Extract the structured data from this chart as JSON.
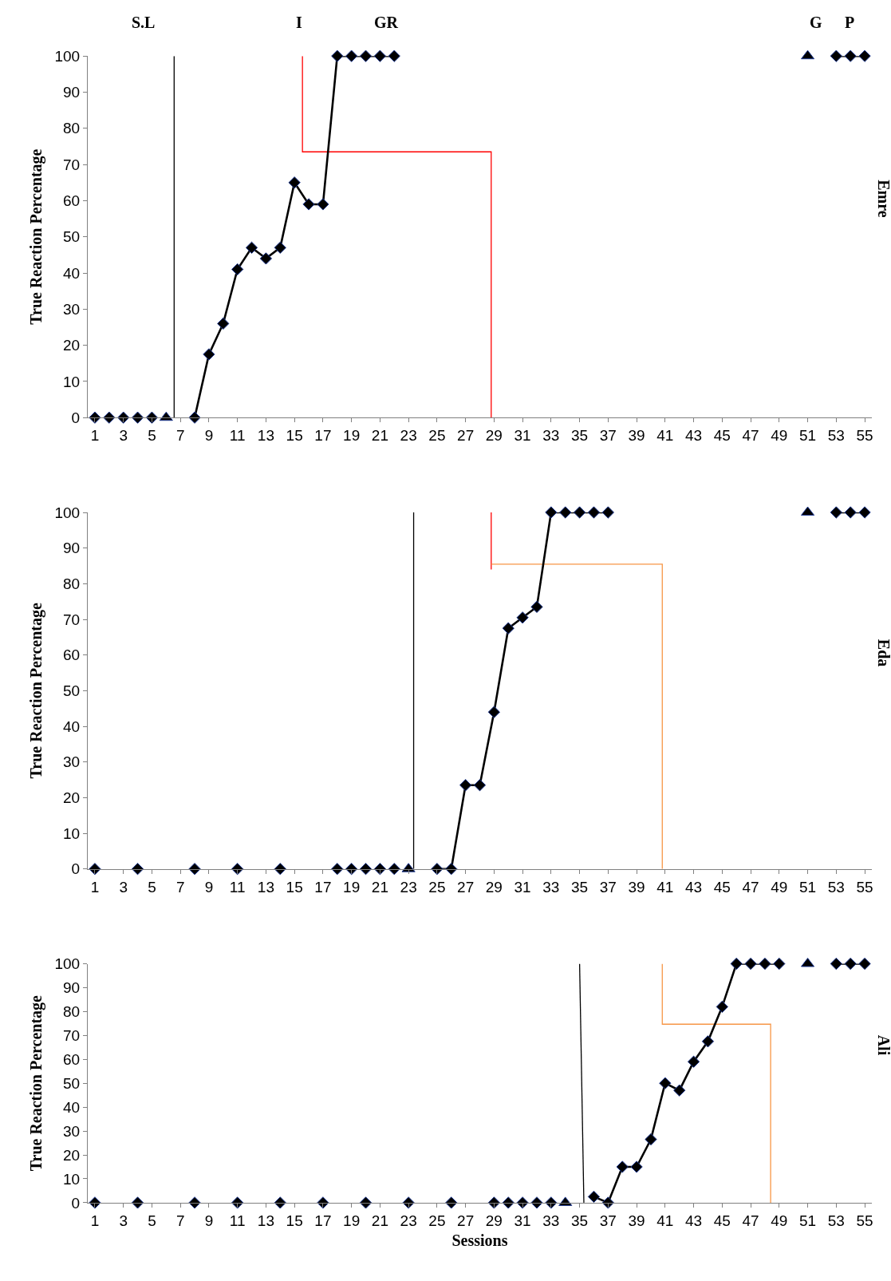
{
  "chart_data": [
    {
      "type": "line",
      "ylabel": "True Reaction Percentage",
      "y2label": "Emre",
      "xlim": [
        0.5,
        55.5
      ],
      "xticks": [
        1,
        3,
        5,
        7,
        9,
        11,
        13,
        15,
        17,
        19,
        21,
        23,
        25,
        27,
        29,
        31,
        33,
        35,
        37,
        39,
        41,
        43,
        45,
        47,
        49,
        51,
        53,
        55
      ],
      "ylim": [
        0,
        100
      ],
      "yticks": [
        0,
        10,
        20,
        30,
        40,
        50,
        60,
        70,
        80,
        90,
        100
      ],
      "marker": "diamond",
      "annotations": [
        "S.L",
        "I",
        "GR",
        "G",
        "P"
      ],
      "series": [
        {
          "marker": "none",
          "color": "#000000",
          "x": [
            6.56,
            6.56
          ],
          "values": [
            100,
            0
          ]
        },
        {
          "marker": "none",
          "color": "#ff0000",
          "x": [
            15.56,
            15.56,
            28.8,
            28.8
          ],
          "values": [
            100,
            73.5,
            73.5,
            0
          ]
        },
        {
          "type": "scatter",
          "color": "#000000",
          "x": [
            1,
            2,
            3,
            4,
            5
          ],
          "values": [
            0,
            0,
            0,
            0,
            0
          ]
        },
        {
          "type": "scatter",
          "marker": "triangle",
          "color": "#000000",
          "x": [
            6,
            51
          ],
          "values": [
            0,
            100
          ]
        },
        {
          "color": "#000000",
          "x": [
            8,
            9,
            10,
            11,
            12,
            13,
            14,
            15,
            16,
            17,
            18,
            19,
            20,
            21,
            22
          ],
          "values": [
            0,
            17.5,
            26,
            41,
            47,
            44,
            47,
            65,
            59,
            59,
            100,
            100,
            100,
            100,
            100
          ]
        },
        {
          "color": "#000000",
          "x": [
            53,
            54,
            55
          ],
          "values": [
            100,
            100,
            100
          ]
        }
      ]
    },
    {
      "type": "line",
      "ylabel": "True Reaction Percentage",
      "y2label": "Eda",
      "xlim": [
        0.5,
        55.5
      ],
      "xticks": [
        1,
        3,
        5,
        7,
        9,
        11,
        13,
        15,
        17,
        19,
        21,
        23,
        25,
        27,
        29,
        31,
        33,
        35,
        37,
        39,
        41,
        43,
        45,
        47,
        49,
        51,
        53,
        55
      ],
      "ylim": [
        0,
        100
      ],
      "yticks": [
        0,
        10,
        20,
        30,
        40,
        50,
        60,
        70,
        80,
        90,
        100
      ],
      "marker": "diamond",
      "series": [
        {
          "marker": "none",
          "color": "#000000",
          "x": [
            23.36,
            23.36
          ],
          "values": [
            100,
            0
          ]
        },
        {
          "marker": "none",
          "color": "#ff0000",
          "x": [
            28.8,
            28.8
          ],
          "values": [
            100,
            84
          ]
        },
        {
          "marker": "none",
          "color": "#f79646",
          "x": [
            28.8,
            40.8,
            40.8
          ],
          "values": [
            85.5,
            85.5,
            0
          ]
        },
        {
          "type": "scatter",
          "color": "#000000",
          "x": [
            1,
            4,
            8,
            11,
            14,
            18,
            19,
            20,
            21,
            22
          ],
          "values": [
            0,
            0,
            0,
            0,
            0,
            0,
            0,
            0,
            0,
            0
          ]
        },
        {
          "type": "scatter",
          "marker": "triangle",
          "color": "#000000",
          "x": [
            23,
            51
          ],
          "values": [
            0,
            100
          ]
        },
        {
          "color": "#000000",
          "x": [
            25,
            26,
            27,
            28,
            29,
            30,
            31,
            32,
            33,
            34,
            35,
            36,
            37
          ],
          "values": [
            0,
            0,
            23.5,
            23.5,
            44,
            67.5,
            70.5,
            73.5,
            100,
            100,
            100,
            100,
            100
          ]
        },
        {
          "color": "#000000",
          "x": [
            53,
            54,
            55
          ],
          "values": [
            100,
            100,
            100
          ]
        }
      ]
    },
    {
      "type": "line",
      "ylabel": "True Reaction Percentage",
      "y2label": "Ali",
      "xlabel": "Sessions",
      "xlim": [
        0.5,
        55.5
      ],
      "xticks": [
        1,
        3,
        5,
        7,
        9,
        11,
        13,
        15,
        17,
        19,
        21,
        23,
        25,
        27,
        29,
        31,
        33,
        35,
        37,
        39,
        41,
        43,
        45,
        47,
        49,
        51,
        53,
        55
      ],
      "ylim": [
        0,
        100
      ],
      "yticks": [
        0,
        10,
        20,
        30,
        40,
        50,
        60,
        70,
        80,
        90,
        100
      ],
      "marker": "diamond",
      "series": [
        {
          "marker": "none",
          "color": "#000000",
          "x": [
            35.0,
            35.3
          ],
          "values": [
            100,
            0
          ]
        },
        {
          "marker": "none",
          "color": "#f79646",
          "x": [
            40.8,
            40.8,
            48.4,
            48.4
          ],
          "values": [
            100,
            74.7,
            74.7,
            0
          ]
        },
        {
          "type": "scatter",
          "color": "#000000",
          "x": [
            1,
            4,
            8,
            11,
            14,
            17,
            20,
            23,
            26,
            29,
            30,
            31,
            32,
            33
          ],
          "values": [
            0,
            0,
            0,
            0,
            0,
            0,
            0,
            0,
            0,
            0,
            0,
            0,
            0,
            0
          ]
        },
        {
          "type": "scatter",
          "marker": "triangle",
          "color": "#000000",
          "x": [
            34,
            51
          ],
          "values": [
            0,
            100
          ]
        },
        {
          "color": "#000000",
          "x": [
            36,
            37,
            38,
            39,
            40,
            41,
            42,
            43,
            44,
            45,
            46,
            47,
            48,
            49
          ],
          "values": [
            2.5,
            0,
            15,
            15,
            26.5,
            50,
            47,
            59,
            67.5,
            82,
            100,
            100,
            100,
            100
          ]
        },
        {
          "color": "#000000",
          "x": [
            53,
            54,
            55
          ],
          "values": [
            100,
            100,
            100
          ]
        }
      ]
    }
  ]
}
